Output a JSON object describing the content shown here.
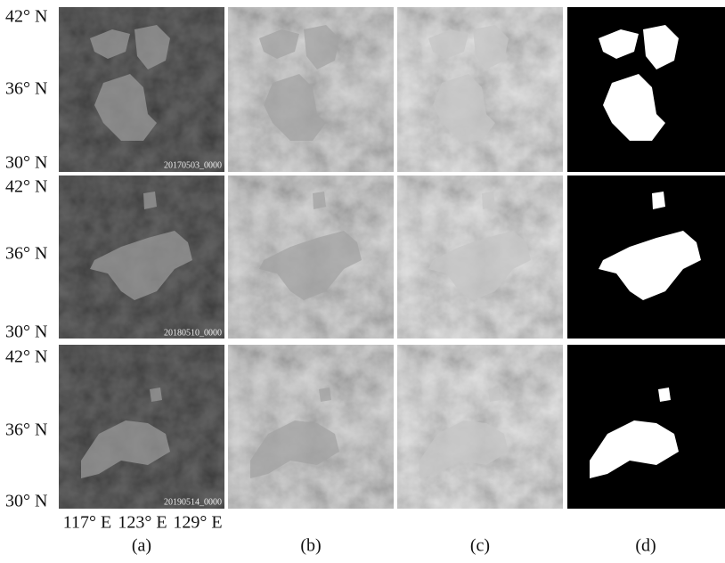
{
  "rows": [
    {
      "lat_labels": [
        "42° N",
        "36° N",
        "30° N"
      ],
      "timestamp": "20170503_0000"
    },
    {
      "lat_labels": [
        "42° N",
        "36° N",
        "30° N"
      ],
      "timestamp": "20180510_0000"
    },
    {
      "lat_labels": [
        "42° N",
        "36° N",
        "30° N"
      ],
      "timestamp": "20190514_0000"
    }
  ],
  "lon_labels": [
    "117° E",
    "123° E",
    "129° E"
  ],
  "panel_labels": [
    "(a)",
    "(b)",
    "(c)",
    "(d)"
  ]
}
